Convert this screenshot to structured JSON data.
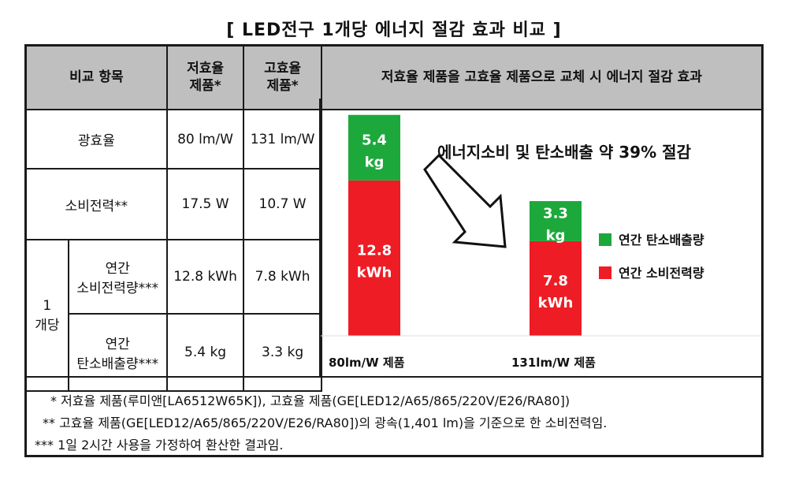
{
  "title": "[ LED전구 1개당 에너지 절감 효과 비교 ]",
  "table": {
    "header": {
      "item": "비교 항목",
      "low": [
        "저효율",
        "제품*"
      ],
      "high": [
        "고효율",
        "제품*"
      ],
      "effect": "저효율 제품을 고효율 제품으로 교체 시 에너지 절감 효과"
    },
    "rows": {
      "efficacy": {
        "label": "광효율",
        "low": "80 lm/W",
        "high": "131 lm/W"
      },
      "power": {
        "label": "소비전력**",
        "low": "17.5 W",
        "high": "10.7 W"
      },
      "group_label": [
        "1",
        "개당"
      ],
      "annual_power": {
        "label": [
          "연간",
          "소비전력량***"
        ],
        "low": "12.8 kWh",
        "high": "7.8 kWh"
      },
      "annual_carbon": {
        "label": [
          "연간",
          "탄소배출량***"
        ],
        "low": "5.4 kg",
        "high": "3.3 kg"
      }
    }
  },
  "chart_data": {
    "type": "bar",
    "stacked": true,
    "headline": "에너지소비 및 탄소배출 약 39% 절감",
    "categories": [
      "80lm/W 제품",
      "131lm/W 제품"
    ],
    "series": [
      {
        "name": "연간 소비전력량",
        "color": "#ee1c25",
        "values": [
          12.8,
          7.8
        ],
        "labels": [
          [
            "12.8",
            "kWh"
          ],
          [
            "7.8",
            "kWh"
          ]
        ]
      },
      {
        "name": "연간 탄소배출량",
        "color": "#1da83c",
        "values": [
          5.4,
          3.3
        ],
        "labels": [
          [
            "5.4",
            "kg"
          ],
          [
            "3.3",
            "kg"
          ]
        ]
      }
    ]
  },
  "footnotes": [
    "* 저효율 제품(루미앤[LA6512W65K]), 고효율 제품(GE[LED12/A65/865/220V/E26/RA80])",
    "** 고효율 제품(GE[LED12/A65/865/220V/E26/RA80])의 광속(1,401 lm)을 기준으로 한 소비전력임.",
    "*** 1일 2시간 사용을 가정하여 환산한 결과임."
  ]
}
